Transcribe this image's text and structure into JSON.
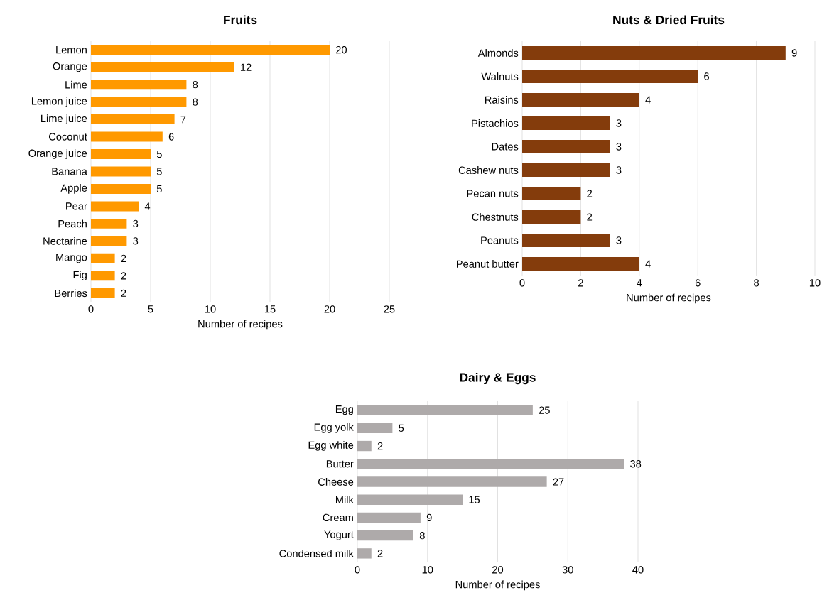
{
  "chart_data": [
    {
      "type": "bar",
      "orientation": "horizontal",
      "title": "Fruits",
      "xlabel": "Number of recipes",
      "categories": [
        "Lemon",
        "Orange",
        "Lime",
        "Lemon juice",
        "Lime juice",
        "Coconut",
        "Orange juice",
        "Banana",
        "Apple",
        "Pear",
        "Peach",
        "Nectarine",
        "Mango",
        "Fig",
        "Berries"
      ],
      "values": [
        20,
        12,
        8,
        8,
        7,
        6,
        5,
        5,
        5,
        4,
        3,
        3,
        2,
        2,
        2
      ],
      "color": "#ff9900",
      "xlim": [
        0,
        25
      ],
      "xticks": [
        0,
        5,
        10,
        15,
        20,
        25
      ],
      "grid": "x",
      "data_labels": true
    },
    {
      "type": "bar",
      "orientation": "horizontal",
      "title": "Nuts & Dried Fruits",
      "xlabel": "Number of recipes",
      "categories": [
        "Almonds",
        "Walnuts",
        "Raisins",
        "Pistachios",
        "Dates",
        "Cashew nuts",
        "Pecan nuts",
        "Chestnuts",
        "Peanuts",
        "Peanut butter"
      ],
      "values": [
        9,
        6,
        4,
        3,
        3,
        3,
        2,
        2,
        3,
        4
      ],
      "color": "#843c0c",
      "xlim": [
        0,
        10
      ],
      "xticks": [
        0,
        2,
        4,
        6,
        8,
        10
      ],
      "grid": "x",
      "data_labels": true
    },
    {
      "type": "bar",
      "orientation": "horizontal",
      "title": "Dairy & Eggs",
      "xlabel": "Number of recipes",
      "categories": [
        "Egg",
        "Egg yolk",
        "Egg white",
        "Butter",
        "Cheese",
        "Milk",
        "Cream",
        "Yogurt",
        "Condensed milk"
      ],
      "values": [
        25,
        5,
        2,
        38,
        27,
        15,
        9,
        8,
        2
      ],
      "color": "#aeaaaa",
      "xlim": [
        0,
        40
      ],
      "xticks": [
        0,
        10,
        20,
        30,
        40
      ],
      "grid": "x",
      "data_labels": true
    }
  ]
}
